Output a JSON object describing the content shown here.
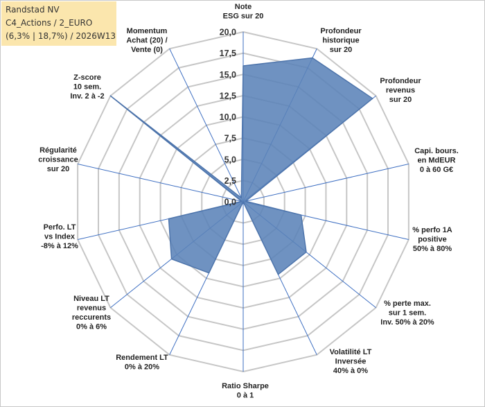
{
  "header": {
    "line1": "Randstad NV",
    "line2": "C4_Actions / 2_EURO",
    "line3": "(6,3% | 18,7%) / 2026W13"
  },
  "chart_data": {
    "type": "radar",
    "title": "",
    "rlim": [
      0,
      20
    ],
    "grid": true,
    "tick_labels": [
      "0,0",
      "2,5",
      "5,0",
      "7,5",
      "10,0",
      "12,5",
      "15,0",
      "17,5",
      "20,0"
    ],
    "categories": [
      [
        "Note",
        "ESG sur 20"
      ],
      [
        "Profondeur",
        "historique",
        "sur 20"
      ],
      [
        "Profondeur",
        "revenus",
        "sur 20"
      ],
      [
        "Capi. bours.",
        "en MdEUR",
        "0 à 60 G€"
      ],
      [
        "% perfo 1A",
        "positive",
        "50% à 80%"
      ],
      [
        "% perte max.",
        "sur 1 sem.",
        "Inv. 50% à 20%"
      ],
      [
        "Volatilité LT",
        "Inversée",
        "40% à 0%"
      ],
      [
        "Ratio Sharpe",
        "0 à 1"
      ],
      [
        "Rendement LT",
        "0% à 20%"
      ],
      [
        "Niveau LT",
        "revenus",
        "reccurents",
        "0% à 6%"
      ],
      [
        "Perfo. LT",
        "vs Index",
        "-8% à 12%"
      ],
      [
        "Régularité",
        "croissance",
        "sur 20"
      ],
      [
        "Z-score",
        "10 sem.",
        "Inv. 2 à -2"
      ],
      [
        "Momentum",
        "Achat (20) /",
        "Vente (0)"
      ]
    ],
    "series": [
      {
        "color": "#5b83b8",
        "values": [
          16.0,
          18.8,
          19.5,
          0.3,
          7.0,
          9.5,
          9.5,
          0.0,
          9.3,
          10.8,
          9.0,
          0.2,
          20.0,
          0.5
        ]
      }
    ]
  }
}
